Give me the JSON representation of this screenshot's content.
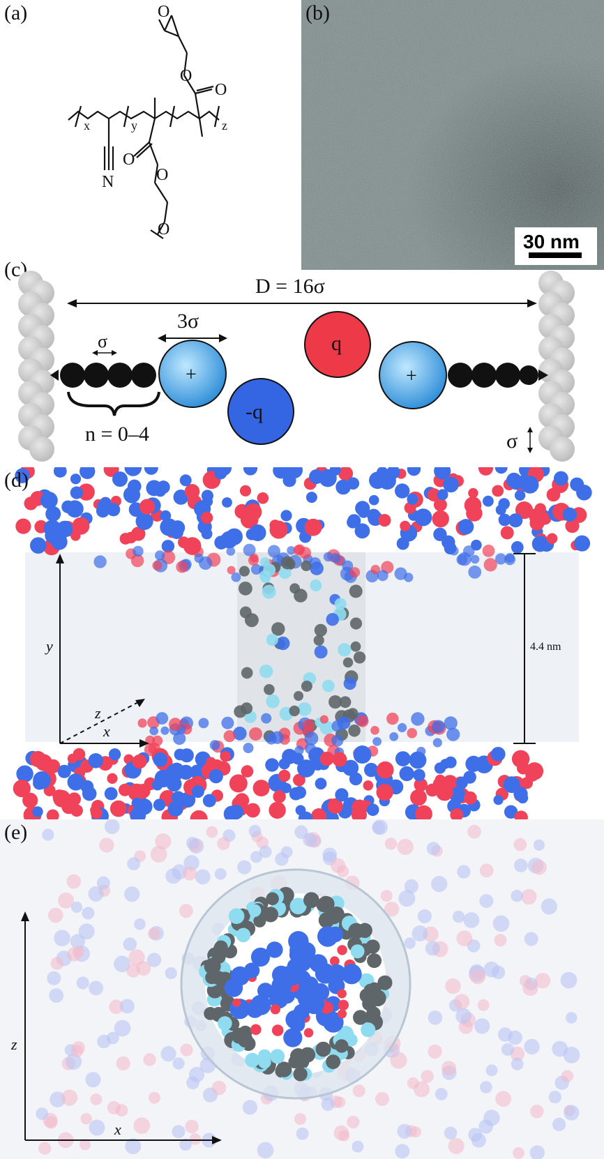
{
  "panels": {
    "a": {
      "label": "(a)",
      "subscripts": [
        "x",
        "y",
        "z"
      ],
      "nitrogen": "N",
      "oxygen": "O"
    },
    "b": {
      "label": "(b)",
      "scale_bar": "30 nm"
    },
    "c": {
      "label": "(c)",
      "distance": "D = 16σ",
      "size_3sigma": "3σ",
      "sigma": "σ",
      "n_range": "n = 0–4",
      "plus": "+",
      "neg_charge": "-q",
      "pos_charge": "q",
      "sigma_right": "σ"
    },
    "d": {
      "label": "(d)",
      "axis_y": "y",
      "axis_z": "z",
      "axis_x": "x",
      "pore_height": "4.4 nm"
    },
    "e": {
      "label": "(e)",
      "axis_z": "z",
      "axis_x": "x"
    }
  },
  "colors": {
    "cation": "#3f6fe8",
    "anion": "#f0435a",
    "chain_bead": "#5f6669",
    "head_bead": "#8fdcf0",
    "wall": "#cfcfcf"
  }
}
